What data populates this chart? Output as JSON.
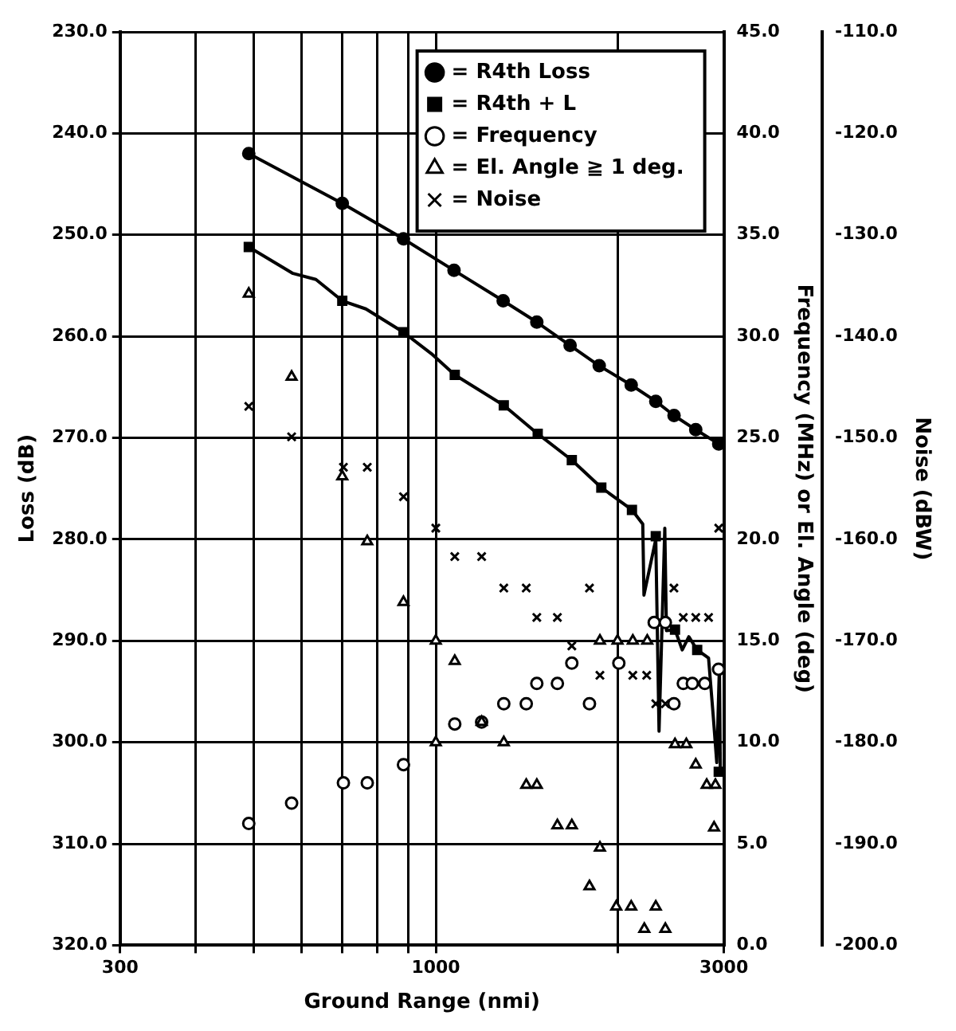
{
  "chart_data": {
    "type": "scatter",
    "xlabel": "Ground Range (nmi)",
    "ylabel": "Loss (dB)",
    "y2label": "Frequency (MHz) or El. Angle (deg)",
    "y3label": "Noise (dBW)",
    "log": "x",
    "grid": true,
    "legend": "top right",
    "xlim": [
      300,
      3000
    ],
    "xticks": [
      300,
      {
        "value": 400,
        "label": null
      },
      {
        "value": 500,
        "label": null
      },
      {
        "value": 600,
        "label": null
      },
      {
        "value": 700,
        "label": null
      },
      {
        "value": 800,
        "label": null
      },
      {
        "value": 900,
        "label": null
      },
      1000,
      {
        "value": 2000,
        "label": null
      },
      3000
    ],
    "ylim": [
      320,
      230
    ],
    "yticks": [
      {
        "value": 230,
        "label": "230.0"
      },
      {
        "value": 240,
        "label": "240.0"
      },
      {
        "value": 250,
        "label": "250.0"
      },
      {
        "value": 260,
        "label": "260.0"
      },
      {
        "value": 270,
        "label": "270.0"
      },
      {
        "value": 280,
        "label": "280.0"
      },
      {
        "value": 290,
        "label": "290.0"
      },
      {
        "value": 300,
        "label": "300.0"
      },
      {
        "value": 310,
        "label": "310.0"
      },
      {
        "value": 320,
        "label": "320.0"
      }
    ],
    "y2lim": [
      0,
      45
    ],
    "y2ticks": [
      {
        "value": 0,
        "label": "0.0"
      },
      {
        "value": 5,
        "label": "5.0"
      },
      {
        "value": 10,
        "label": "10.0"
      },
      {
        "value": 15,
        "label": "15.0"
      },
      {
        "value": 20,
        "label": "20.0"
      },
      {
        "value": 25,
        "label": "25.0"
      },
      {
        "value": 30,
        "label": "30.0"
      },
      {
        "value": 35,
        "label": "35.0"
      },
      {
        "value": 40,
        "label": "40.0"
      },
      {
        "value": 45,
        "label": "45.0"
      }
    ],
    "y3lim": [
      -200,
      -110
    ],
    "y3ticks": [
      {
        "value": -200,
        "label": "-200.0"
      },
      {
        "value": -190,
        "label": "-190.0"
      },
      {
        "value": -180,
        "label": "-180.0"
      },
      {
        "value": -170,
        "label": "-170.0"
      },
      {
        "value": -160,
        "label": "-160.0"
      },
      {
        "value": -150,
        "label": "-150.0"
      },
      {
        "value": -140,
        "label": "-140.0"
      },
      {
        "value": -130,
        "label": "-130.0"
      },
      {
        "value": -120,
        "label": "-120.0"
      },
      {
        "value": -110,
        "label": "-110.0"
      }
    ],
    "series": [
      {
        "name": "= R4th Loss",
        "type": "line",
        "marker": "circle",
        "color": "#000000",
        "x": [
          490,
          700,
          884,
          1072,
          1293,
          1470,
          1669,
          1865,
          2107,
          2314,
          2481,
          2695,
          2942
        ],
        "values": [
          242.0,
          246.9,
          250.4,
          253.5,
          256.5,
          258.6,
          260.9,
          262.9,
          264.8,
          266.4,
          267.8,
          269.2,
          270.6
        ]
      },
      {
        "name": "= R4th + L",
        "type": "scatter",
        "marker": "square",
        "color": "#000000",
        "x": [
          490,
          700,
          884,
          1075,
          1296,
          1475,
          1680,
          1880,
          2113,
          2314,
          2490,
          2710,
          2942
        ],
        "values": [
          251.2,
          256.5,
          259.6,
          263.8,
          266.8,
          269.6,
          272.2,
          274.9,
          277.1,
          279.7,
          288.9,
          290.9,
          302.9
        ]
      },
      {
        "type": "line",
        "marker": "none",
        "color": "#000000",
        "x": [
          490,
          580,
          633,
          700,
          766,
          884,
          983,
          1075,
          1296,
          1475,
          1680,
          1880,
          2113,
          2202,
          2212,
          2314,
          2343,
          2395,
          2410,
          2490,
          2560,
          2625,
          2710,
          2830,
          2880,
          2920,
          2950,
          2960
        ],
        "values": [
          251.2,
          253.8,
          254.4,
          256.5,
          257.3,
          259.6,
          261.7,
          263.8,
          266.8,
          269.6,
          272.2,
          274.9,
          277.1,
          278.5,
          285.5,
          280.0,
          298.9,
          278.9,
          289.0,
          288.9,
          290.9,
          289.6,
          290.9,
          291.7,
          297.3,
          302.0,
          292.4,
          302.9
        ]
      },
      {
        "name": "= Frequency",
        "type": "scatter",
        "marker": "circle",
        "color": "#000000",
        "axis": "y2",
        "x": [
          490,
          577,
          703,
          770,
          884,
          1075,
          1191,
          1296,
          1412,
          1470,
          1590,
          1680,
          1797,
          2010,
          2300,
          2400,
          2480,
          2570,
          2660,
          2790,
          2940
        ],
        "values": [
          6.0,
          7.0,
          8.0,
          8.0,
          8.9,
          10.9,
          11.0,
          11.9,
          11.9,
          12.9,
          12.9,
          13.9,
          11.9,
          13.9,
          15.9,
          15.9,
          11.9,
          12.9,
          12.9,
          12.9,
          13.6
        ]
      },
      {
        "name": "= El. Angle ≧ 1 deg.",
        "type": "scatter",
        "marker": "triangle",
        "color": "#000000",
        "axis": "y2",
        "x": [
          490,
          577,
          700,
          770,
          884,
          1000,
          1000,
          1075,
          1191,
          1296,
          1412,
          1470,
          1590,
          1680,
          1797,
          1870,
          1870,
          1990,
          2000,
          2107,
          2120,
          2215,
          2240,
          2314,
          2400,
          2490,
          2600,
          2695,
          2810,
          2890,
          2905
        ],
        "values": [
          32.1,
          28.0,
          23.1,
          19.9,
          16.9,
          15.0,
          10.0,
          14.0,
          11.0,
          10.0,
          7.9,
          7.9,
          5.9,
          5.9,
          2.9,
          4.8,
          15.0,
          1.9,
          15.0,
          1.9,
          15.0,
          0.8,
          15.0,
          1.9,
          0.8,
          9.9,
          9.9,
          8.9,
          7.9,
          5.8,
          7.9
        ]
      },
      {
        "name": "= Noise",
        "type": "scatter",
        "marker": "cross",
        "color": "#000000",
        "axis": "y3",
        "x": [
          490,
          577,
          703,
          770,
          884,
          1000,
          1075,
          1191,
          1296,
          1412,
          1470,
          1590,
          1680,
          1797,
          1870,
          2120,
          2235,
          2314,
          2400,
          2480,
          2570,
          2695,
          2830,
          2942
        ],
        "values": [
          -146.9,
          -149.9,
          -152.9,
          -152.9,
          -155.8,
          -158.9,
          -161.7,
          -161.7,
          -164.8,
          -164.8,
          -167.7,
          -167.7,
          -170.5,
          -164.8,
          -173.4,
          -173.4,
          -173.4,
          -176.2,
          -176.2,
          -164.8,
          -167.7,
          -167.7,
          -167.7,
          -158.9
        ]
      }
    ]
  }
}
